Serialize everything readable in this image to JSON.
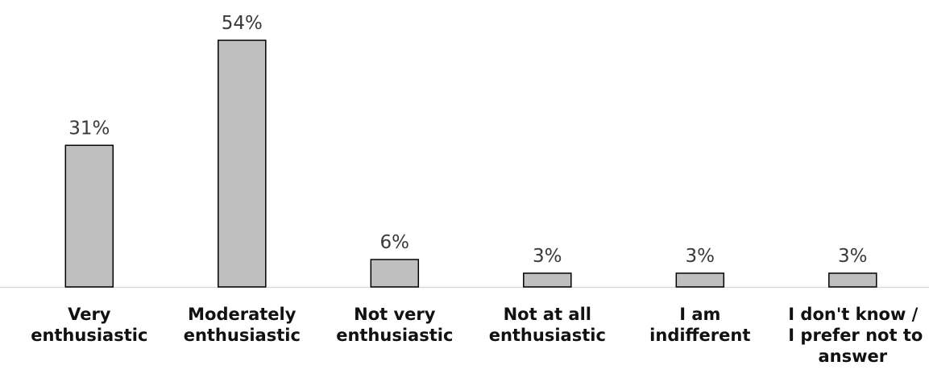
{
  "chart_data": {
    "type": "bar",
    "categories": [
      [
        "Very",
        "enthusiastic"
      ],
      [
        "Moderately",
        "enthusiastic"
      ],
      [
        "Not very",
        "enthusiastic"
      ],
      [
        "Not at all",
        "enthusiastic"
      ],
      [
        "I am",
        "indifferent"
      ],
      [
        "I don't know /",
        "I prefer not to",
        "answer"
      ]
    ],
    "values": [
      31,
      54,
      6,
      3,
      3,
      3
    ],
    "data_labels": [
      "31%",
      "54%",
      "6%",
      "3%",
      "3%",
      "3%"
    ],
    "title": "",
    "xlabel": "",
    "ylabel": "",
    "ylim": [
      0,
      54
    ],
    "grid": false,
    "legend": "none",
    "colors": {
      "bar_fill": "#bfbfbf",
      "bar_stroke": "#000000",
      "baseline": "#d9d9d9",
      "label_text": "#3a3a3a",
      "category_text": "#111111"
    }
  }
}
